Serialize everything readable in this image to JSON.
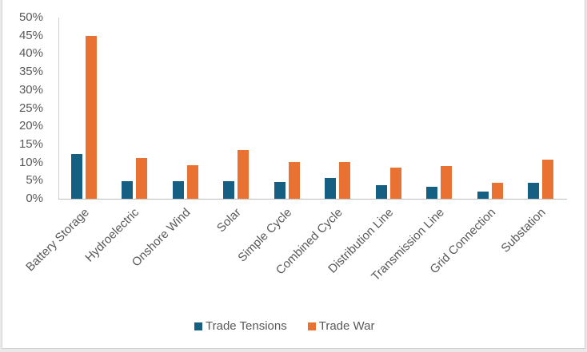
{
  "chart_data": {
    "type": "bar",
    "title": "",
    "xlabel": "",
    "ylabel": "",
    "ylim": [
      0,
      0.5
    ],
    "yticks": [
      "0%",
      "5%",
      "10%",
      "15%",
      "20%",
      "25%",
      "30%",
      "35%",
      "40%",
      "45%",
      "50%"
    ],
    "grid": false,
    "legend_position": "bottom",
    "categories": [
      "Battery Storage",
      "Hydroelectric",
      "Onshore Wind",
      "Solar",
      "Simple Cycle",
      "Combined Cycle",
      "Distribution Line",
      "Transmission Line",
      "Grid Connection",
      "Substation"
    ],
    "series": [
      {
        "name": "Trade Tensions",
        "color": "#156082",
        "values": [
          0.123,
          0.049,
          0.049,
          0.049,
          0.046,
          0.057,
          0.037,
          0.032,
          0.02,
          0.043
        ]
      },
      {
        "name": "Trade War",
        "color": "#E97132",
        "values": [
          0.449,
          0.113,
          0.093,
          0.134,
          0.101,
          0.101,
          0.087,
          0.09,
          0.043,
          0.109
        ]
      }
    ]
  }
}
